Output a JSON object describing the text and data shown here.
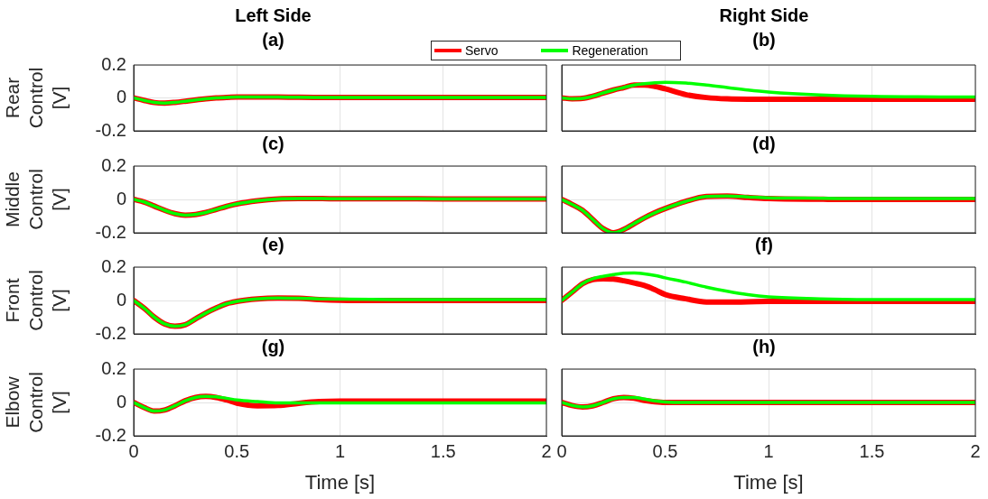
{
  "chart_data": [
    {
      "type": "line",
      "title": "Left Side",
      "subtitle": "(a)",
      "ylabel": "Rear Control [V]",
      "x": [
        0,
        0.05,
        0.1,
        0.15,
        0.2,
        0.25,
        0.3,
        0.35,
        0.4,
        0.45,
        0.5,
        0.6,
        0.7,
        0.8,
        0.9,
        1,
        1.25,
        1.5,
        2
      ],
      "series": [
        {
          "name": "Servo",
          "color": "#ff0000",
          "values": [
            0,
            -0.015,
            -0.028,
            -0.031,
            -0.027,
            -0.02,
            -0.012,
            -0.005,
            0,
            0.003,
            0.005,
            0.006,
            0.005,
            0.004,
            0.003,
            0.003,
            0.003,
            0.003,
            0.003
          ]
        },
        {
          "name": "Regeneration",
          "color": "#00ff00",
          "values": [
            0,
            -0.015,
            -0.028,
            -0.031,
            -0.027,
            -0.02,
            -0.012,
            -0.005,
            0,
            0.003,
            0.005,
            0.006,
            0.005,
            0.004,
            0.003,
            0.003,
            0.003,
            0.003,
            0.003
          ]
        }
      ],
      "xlim": [
        0,
        2
      ],
      "xticks": [
        0,
        0.5,
        1,
        1.5,
        2
      ],
      "ylim": [
        -0.2,
        0.2
      ],
      "yticks": [
        -0.2,
        0,
        0.2
      ],
      "grid": true,
      "tick_labels": "y",
      "legend": "top right"
    },
    {
      "type": "line",
      "title": "Right Side",
      "subtitle": "(b)",
      "x": [
        0,
        0.05,
        0.1,
        0.15,
        0.2,
        0.25,
        0.3,
        0.35,
        0.4,
        0.45,
        0.5,
        0.6,
        0.7,
        0.8,
        0.9,
        1,
        1.25,
        1.5,
        2
      ],
      "series": [
        {
          "color": "#ff0000",
          "values": [
            0,
            -0.005,
            -0.003,
            0.01,
            0.03,
            0.048,
            0.063,
            0.078,
            0.078,
            0.07,
            0.055,
            0.02,
            0.002,
            -0.006,
            -0.008,
            -0.008,
            -0.008,
            -0.008,
            -0.008
          ]
        },
        {
          "color": "#00ff00",
          "values": [
            0,
            -0.005,
            -0.003,
            0.01,
            0.03,
            0.048,
            0.063,
            0.078,
            0.086,
            0.092,
            0.095,
            0.09,
            0.078,
            0.063,
            0.048,
            0.036,
            0.018,
            0.009,
            0.005
          ]
        }
      ],
      "xlim": [
        0,
        2
      ],
      "xticks": [
        0,
        0.5,
        1,
        1.5,
        2
      ],
      "ylim": [
        -0.2,
        0.2
      ],
      "yticks": [
        -0.2,
        0,
        0.2
      ],
      "grid": true,
      "tick_labels": false
    },
    {
      "type": "line",
      "title": "(c)",
      "ylabel": "Middle Control [V]",
      "x": [
        0,
        0.05,
        0.1,
        0.15,
        0.2,
        0.25,
        0.3,
        0.35,
        0.4,
        0.45,
        0.5,
        0.6,
        0.7,
        0.8,
        0.9,
        1,
        1.25,
        1.5,
        2
      ],
      "series": [
        {
          "color": "#ff0000",
          "values": [
            0,
            -0.015,
            -0.04,
            -0.065,
            -0.085,
            -0.094,
            -0.09,
            -0.078,
            -0.06,
            -0.042,
            -0.027,
            -0.008,
            0.003,
            0.005,
            0.005,
            0.004,
            0.004,
            0.003,
            0.003
          ]
        },
        {
          "color": "#00ff00",
          "values": [
            0,
            -0.015,
            -0.04,
            -0.065,
            -0.085,
            -0.094,
            -0.09,
            -0.078,
            -0.06,
            -0.042,
            -0.027,
            -0.008,
            0.003,
            0.005,
            0.005,
            0.004,
            0.004,
            0.003,
            0.003
          ]
        }
      ],
      "xlim": [
        0,
        2
      ],
      "xticks": [
        0,
        0.5,
        1,
        1.5,
        2
      ],
      "ylim": [
        -0.2,
        0.2
      ],
      "yticks": [
        -0.2,
        0,
        0.2
      ],
      "grid": true,
      "tick_labels": "y"
    },
    {
      "type": "line",
      "title": "(d)",
      "x": [
        0,
        0.05,
        0.1,
        0.15,
        0.2,
        0.25,
        0.3,
        0.35,
        0.4,
        0.45,
        0.5,
        0.6,
        0.7,
        0.8,
        0.9,
        1,
        1.25,
        1.5,
        2
      ],
      "series": [
        {
          "color": "#ff0000",
          "values": [
            0,
            -0.03,
            -0.065,
            -0.12,
            -0.175,
            -0.2,
            -0.18,
            -0.145,
            -0.11,
            -0.08,
            -0.055,
            -0.012,
            0.017,
            0.02,
            0.012,
            0.005,
            0.001,
            0,
            0
          ]
        },
        {
          "color": "#00ff00",
          "values": [
            0,
            -0.03,
            -0.065,
            -0.12,
            -0.175,
            -0.2,
            -0.18,
            -0.145,
            -0.11,
            -0.08,
            -0.055,
            -0.012,
            0.017,
            0.02,
            0.015,
            0.01,
            0.007,
            0.005,
            0.005
          ]
        }
      ],
      "xlim": [
        0,
        2
      ],
      "xticks": [
        0,
        0.5,
        1,
        1.5,
        2
      ],
      "ylim": [
        -0.2,
        0.2
      ],
      "yticks": [
        -0.2,
        0,
        0.2
      ],
      "grid": true,
      "tick_labels": false
    },
    {
      "type": "line",
      "title": "(e)",
      "ylabel": "Front Control [V]",
      "x": [
        0,
        0.05,
        0.1,
        0.15,
        0.2,
        0.25,
        0.3,
        0.35,
        0.4,
        0.45,
        0.5,
        0.6,
        0.7,
        0.8,
        0.9,
        1,
        1.25,
        1.5,
        2
      ],
      "series": [
        {
          "color": "#ff0000",
          "values": [
            0,
            -0.045,
            -0.1,
            -0.14,
            -0.154,
            -0.145,
            -0.11,
            -0.075,
            -0.045,
            -0.02,
            -0.005,
            0.01,
            0.015,
            0.013,
            0.006,
            0.002,
            0,
            0,
            0
          ]
        },
        {
          "color": "#00ff00",
          "values": [
            0,
            -0.045,
            -0.1,
            -0.14,
            -0.154,
            -0.145,
            -0.11,
            -0.075,
            -0.045,
            -0.02,
            -0.005,
            0.01,
            0.015,
            0.013,
            0.01,
            0.008,
            0.006,
            0.005,
            0.005
          ]
        }
      ],
      "xlim": [
        0,
        2
      ],
      "xticks": [
        0,
        0.5,
        1,
        1.5,
        2
      ],
      "ylim": [
        -0.2,
        0.2
      ],
      "yticks": [
        -0.2,
        0,
        0.2
      ],
      "grid": true,
      "tick_labels": "y"
    },
    {
      "type": "line",
      "title": "(f)",
      "x": [
        0,
        0.05,
        0.1,
        0.15,
        0.2,
        0.25,
        0.3,
        0.35,
        0.4,
        0.45,
        0.5,
        0.6,
        0.7,
        0.8,
        0.9,
        1,
        1.25,
        1.5,
        2
      ],
      "series": [
        {
          "color": "#ff0000",
          "values": [
            0,
            0.05,
            0.1,
            0.125,
            0.13,
            0.128,
            0.118,
            0.105,
            0.09,
            0.065,
            0.036,
            0.01,
            -0.009,
            -0.01,
            -0.008,
            -0.006,
            -0.005,
            -0.005,
            -0.005
          ]
        },
        {
          "color": "#00ff00",
          "values": [
            0,
            0.05,
            0.1,
            0.13,
            0.145,
            0.155,
            0.163,
            0.165,
            0.16,
            0.15,
            0.136,
            0.11,
            0.08,
            0.055,
            0.035,
            0.022,
            0.01,
            0.006,
            0.005
          ]
        }
      ],
      "xlim": [
        0,
        2
      ],
      "xticks": [
        0,
        0.5,
        1,
        1.5,
        2
      ],
      "ylim": [
        -0.2,
        0.2
      ],
      "yticks": [
        -0.2,
        0,
        0.2
      ],
      "grid": true,
      "tick_labels": false
    },
    {
      "type": "line",
      "title": "(g)",
      "ylabel": "Elbow Control [V]",
      "xlabel": "Time [s]",
      "x": [
        0,
        0.05,
        0.1,
        0.15,
        0.2,
        0.25,
        0.3,
        0.35,
        0.4,
        0.45,
        0.5,
        0.6,
        0.7,
        0.8,
        0.9,
        1,
        1.25,
        1.5,
        2
      ],
      "series": [
        {
          "color": "#ff0000",
          "values": [
            0,
            -0.03,
            -0.052,
            -0.045,
            -0.02,
            0.01,
            0.03,
            0.036,
            0.03,
            0.015,
            -0.004,
            -0.02,
            -0.018,
            -0.005,
            0.005,
            0.008,
            0.008,
            0.008,
            0.008
          ]
        },
        {
          "color": "#00ff00",
          "values": [
            0,
            -0.03,
            -0.052,
            -0.045,
            -0.02,
            0.01,
            0.03,
            0.036,
            0.034,
            0.025,
            0.015,
            0.005,
            -0.003,
            -0.003,
            -0.003,
            -0.003,
            -0.003,
            -0.003,
            -0.003
          ]
        }
      ],
      "xlim": [
        0,
        2
      ],
      "xticks": [
        0,
        0.5,
        1,
        1.5,
        2
      ],
      "ylim": [
        -0.2,
        0.2
      ],
      "yticks": [
        -0.2,
        0,
        0.2
      ],
      "grid": true
    },
    {
      "type": "line",
      "title": "(h)",
      "xlabel": "Time [s]",
      "x": [
        0,
        0.05,
        0.1,
        0.15,
        0.2,
        0.25,
        0.3,
        0.35,
        0.4,
        0.45,
        0.5,
        0.6,
        0.7,
        0.8,
        0.9,
        1,
        1.25,
        1.5,
        2
      ],
      "series": [
        {
          "color": "#ff0000",
          "values": [
            0,
            -0.018,
            -0.027,
            -0.02,
            0,
            0.022,
            0.03,
            0.025,
            0.012,
            0.004,
            0,
            0,
            0,
            0,
            0,
            0,
            0,
            0,
            0
          ]
        },
        {
          "color": "#00ff00",
          "values": [
            0,
            -0.018,
            -0.027,
            -0.02,
            0,
            0.022,
            0.03,
            0.03,
            0.02,
            0.01,
            0.003,
            0,
            0,
            0,
            0,
            0,
            0,
            0,
            0
          ]
        }
      ],
      "xlim": [
        0,
        2
      ],
      "xticks": [
        0,
        0.5,
        1,
        1.5,
        2
      ],
      "ylim": [
        -0.2,
        0.2
      ],
      "yticks": [
        -0.2,
        0,
        0.2
      ],
      "grid": true,
      "tick_labels": "x"
    }
  ]
}
